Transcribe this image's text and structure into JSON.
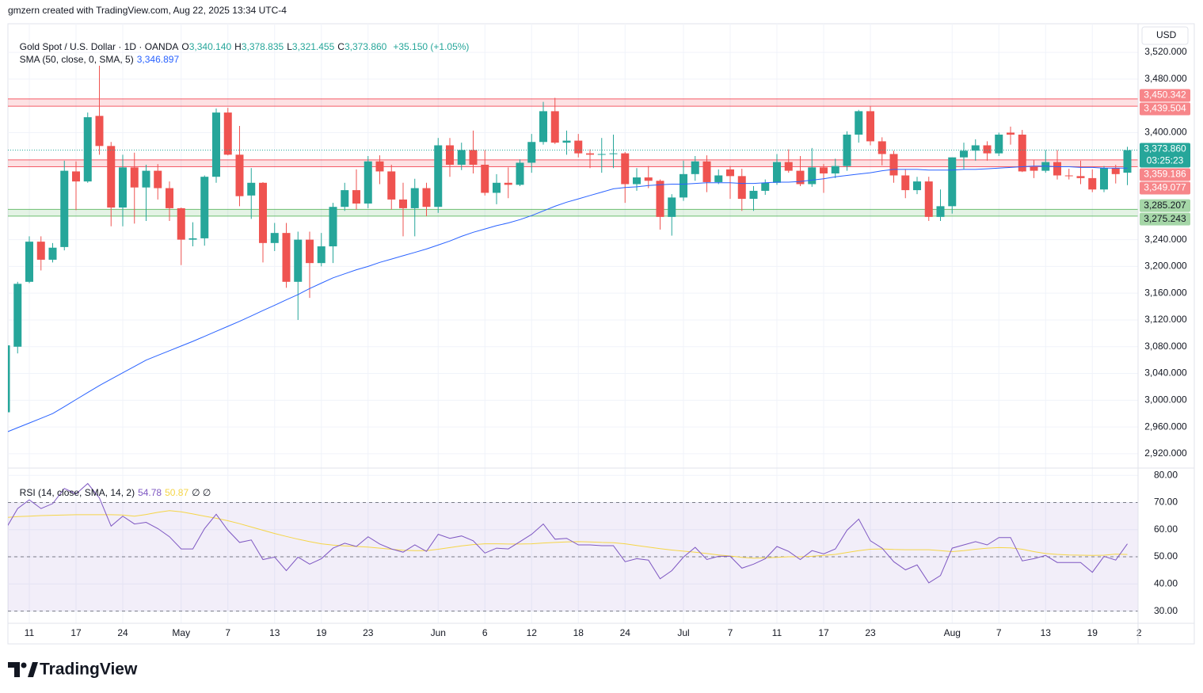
{
  "header": {
    "attribution": "gmzern created with TradingView.com, Aug 22, 2025 13:34 UTC-4"
  },
  "chart_data": {
    "type": "candlestick",
    "title": "Gold Spot / U.S. Dollar · 1D · OANDA",
    "ohlc_legend": [
      {
        "label": "O",
        "value": "3,340.140"
      },
      {
        "label": "H",
        "value": "3,378.835"
      },
      {
        "label": "L",
        "value": "3,321.455"
      },
      {
        "label": "C",
        "value": "3,373.860"
      }
    ],
    "change": "+35.150 (+1.05%)",
    "currency": "USD",
    "up_color": "#26a69a",
    "down_color": "#ef5350",
    "grid": true,
    "categories": [
      null,
      null,
      "11",
      null,
      null,
      null,
      "17",
      null,
      null,
      null,
      "24",
      null,
      null,
      null,
      null,
      "May",
      null,
      null,
      null,
      "7",
      null,
      null,
      null,
      "13",
      null,
      null,
      null,
      "19",
      null,
      null,
      null,
      "23",
      null,
      null,
      null,
      null,
      null,
      "Jun",
      null,
      null,
      null,
      "6",
      null,
      null,
      null,
      "12",
      null,
      null,
      null,
      "18",
      null,
      null,
      null,
      "24",
      null,
      null,
      null,
      null,
      "Jul",
      null,
      null,
      null,
      "7",
      null,
      null,
      null,
      "11",
      null,
      null,
      null,
      "17",
      null,
      null,
      null,
      "23",
      null,
      null,
      null,
      null,
      null,
      null,
      "Aug",
      null,
      null,
      null,
      "7",
      null,
      null,
      null,
      "13",
      null,
      null,
      null,
      "19",
      null,
      null,
      null,
      "2"
    ],
    "open": [
      2982,
      3080,
      3177,
      3237,
      3210,
      3229,
      3342,
      3327,
      3425,
      3380,
      3288,
      3348,
      3318,
      3343,
      3317,
      3287,
      3240,
      3242,
      3334,
      3430,
      3367,
      3306,
      3325,
      3235,
      3250,
      3177,
      3240,
      3205,
      3230,
      3289,
      3314,
      3294,
      3357,
      3342,
      3300,
      3287,
      3317,
      3289,
      3381,
      3352,
      3374,
      3352,
      3310,
      3325,
      3322,
      3355,
      3386,
      3432,
      3385,
      3388,
      3369,
      3367,
      3368,
      3369,
      3323,
      3333,
      3328,
      3274,
      3303,
      3338,
      3357,
      3326,
      3345,
      3335,
      3301,
      3313,
      3325,
      3356,
      3343,
      3323,
      3348,
      3339,
      3350,
      3397,
      3432,
      3387,
      3368,
      3336,
      3314,
      3327,
      3274,
      3290,
      3363,
      3373,
      3381,
      3369,
      3400,
      3397,
      3349,
      3343,
      3356,
      3336,
      3335,
      3332,
      3315,
      3347,
      3340.14,
      null
    ],
    "high": [
      3090,
      3177,
      3245,
      3245,
      3235,
      3358,
      3357,
      3430,
      3500,
      3386,
      3367,
      3370,
      3352,
      3353,
      3327,
      3288,
      3266,
      3336,
      3436,
      3437,
      3410,
      3347,
      3326,
      3265,
      3265,
      3252,
      3252,
      3250,
      3295,
      3325,
      3345,
      3365,
      3366,
      3352,
      3325,
      3331,
      3325,
      3392,
      3392,
      3385,
      3403,
      3374,
      3338,
      3348,
      3360,
      3398,
      3446,
      3452,
      3403,
      3398,
      3375,
      3392,
      3397,
      3371,
      3347,
      3350,
      3330,
      3308,
      3358,
      3365,
      3366,
      3345,
      3350,
      3346,
      3320,
      3330,
      3368,
      3375,
      3365,
      3377,
      3353,
      3361,
      3402,
      3434,
      3439,
      3393,
      3373,
      3345,
      3334,
      3334,
      3315,
      3363,
      3385,
      3390,
      3387,
      3400,
      3409,
      3404,
      3359,
      3374,
      3374,
      3346,
      3358,
      3345,
      3350,
      3352,
      3378.835,
      null
    ],
    "low": [
      2975,
      3070,
      3175,
      3194,
      3206,
      3224,
      3284,
      3325,
      3367,
      3260,
      3260,
      3264,
      3268,
      3300,
      3268,
      3202,
      3230,
      3231,
      3325,
      3366,
      3290,
      3271,
      3206,
      3223,
      3168,
      3120,
      3153,
      3200,
      3205,
      3283,
      3285,
      3287,
      3323,
      3285,
      3245,
      3245,
      3275,
      3280,
      3334,
      3344,
      3339,
      3306,
      3293,
      3302,
      3320,
      3340,
      3382,
      3383,
      3367,
      3363,
      3347,
      3340,
      3347,
      3295,
      3313,
      3317,
      3255,
      3246,
      3298,
      3328,
      3311,
      3323,
      3301,
      3283,
      3283,
      3307,
      3322,
      3340,
      3320,
      3319,
      3310,
      3332,
      3343,
      3385,
      3381,
      3351,
      3325,
      3302,
      3308,
      3268,
      3268,
      3279,
      3345,
      3358,
      3358,
      3365,
      3382,
      3341,
      3332,
      3340,
      3330,
      3330,
      3323,
      3311,
      3311,
      3324,
      3321.455,
      null
    ],
    "close": [
      3082,
      3174,
      3237,
      3210,
      3228,
      3343,
      3327,
      3423,
      3380,
      3288,
      3348,
      3318,
      3343,
      3317,
      3287,
      3240,
      3242,
      3334,
      3430,
      3367,
      3305,
      3325,
      3235,
      3250,
      3177,
      3240,
      3205,
      3230,
      3289,
      3314,
      3294,
      3357,
      3342,
      3300,
      3287,
      3317,
      3289,
      3381,
      3352,
      3374,
      3352,
      3310,
      3325,
      3322,
      3355,
      3386,
      3432,
      3385,
      3388,
      3369,
      3367,
      3368,
      3369,
      3323,
      3333,
      3328,
      3274,
      3303,
      3338,
      3357,
      3326,
      3336,
      3335,
      3301,
      3313,
      3325,
      3356,
      3343,
      3323,
      3348,
      3339,
      3350,
      3397,
      3432,
      3387,
      3368,
      3336,
      3314,
      3327,
      3274,
      3290,
      3363,
      3373,
      3381,
      3369,
      3397,
      3397,
      3342,
      3343,
      3356,
      3336,
      3335,
      3332,
      3315,
      3347,
      3338,
      3373.86,
      null
    ],
    "ylim": [
      2898.6,
      3562.7
    ],
    "yticks": [
      {
        "value": 3520,
        "label": "3,520.000"
      },
      {
        "value": 3480,
        "label": "3,480.000"
      },
      {
        "value": 3400,
        "label": "3,400.000"
      },
      {
        "value": 3240,
        "label": "3,240.000"
      },
      {
        "value": 3200,
        "label": "3,200.000"
      },
      {
        "value": 3160,
        "label": "3,160.000"
      },
      {
        "value": 3120,
        "label": "3,120.000"
      },
      {
        "value": 3080,
        "label": "3,080.000"
      },
      {
        "value": 3040,
        "label": "3,040.000"
      },
      {
        "value": 3000,
        "label": "3,000.000"
      },
      {
        "value": 2960,
        "label": "2,960.000"
      },
      {
        "value": 2920,
        "label": "2,920.000"
      }
    ],
    "sma": {
      "name": "SMA (50, close, 0, SMA, 5)",
      "value_label": "3,346.897",
      "color": "#2962ff",
      "values": [
        2952,
        2959,
        2966,
        2973,
        2980,
        2990.5,
        3001,
        3011.5,
        3022,
        3031.5,
        3041,
        3050.5,
        3060,
        3067,
        3074,
        3081,
        3088,
        3095.5,
        3103,
        3110.5,
        3118,
        3126,
        3134,
        3142,
        3150,
        3158,
        3167,
        3175,
        3183,
        3189,
        3195,
        3200,
        3206,
        3211,
        3216,
        3221,
        3226,
        3232,
        3238,
        3245,
        3251,
        3256,
        3261,
        3265,
        3270,
        3276,
        3283,
        3290,
        3296,
        3301,
        3306,
        3311,
        3316,
        3318,
        3319,
        3321,
        3322,
        3323,
        3323,
        3324,
        3325,
        3325,
        3325,
        3324,
        3324,
        3325,
        3326,
        3326,
        3327,
        3329,
        3331,
        3334,
        3336,
        3338,
        3340,
        3343,
        3345,
        3345,
        3345,
        3344,
        3344,
        3344,
        3345,
        3345,
        3346,
        3347,
        3348,
        3349,
        3350,
        3350,
        3349,
        3349,
        3348,
        3348,
        3347,
        3347,
        3346.897,
        null
      ]
    },
    "levels": [
      {
        "high": {
          "value": 3450.342,
          "label": "3,450.342"
        },
        "low": {
          "value": 3439.504,
          "label": "3,439.504"
        },
        "color": "#f23645",
        "tag_color": "#f7868a",
        "tag_text": "#ffffff"
      },
      {
        "high": {
          "value": 3359.186,
          "label": "3,359.186"
        },
        "low": {
          "value": 3349.077,
          "label": "3,349.077"
        },
        "color": "#f23645",
        "tag_color": "#f7868a",
        "tag_text": "#ffffff"
      },
      {
        "high": {
          "value": 3285.207,
          "label": "3,285.207"
        },
        "low": {
          "value": 3275.243,
          "label": "3,275.243"
        },
        "color": "#4caf50",
        "tag_color": "#a5d6a7",
        "tag_text": "#131722"
      }
    ],
    "last_price": {
      "value": 3373.86,
      "label": "3,373.860",
      "countdown": "03:25:23",
      "color": "#26a69a"
    },
    "rsi": {
      "name": "RSI (14, close, SMA, 14, 2)",
      "value_label": "54.78",
      "signal_label": "50.87",
      "status": "∅ ∅",
      "color": "#7e57c2",
      "signal_color": "#f5d547",
      "values": [
        60.4,
        67.8,
        71.0,
        67.8,
        69.6,
        75.2,
        73.2,
        77.0,
        71.7,
        61.3,
        65.0,
        62.1,
        62.7,
        60.4,
        57.4,
        52.9,
        52.9,
        60.4,
        65.7,
        59.8,
        55.3,
        56.2,
        49.0,
        49.9,
        44.9,
        49.9,
        47.3,
        49.3,
        53.2,
        55.0,
        53.8,
        57.4,
        54.7,
        52.9,
        51.7,
        54.4,
        52.0,
        58.3,
        56.8,
        57.7,
        55.9,
        51.4,
        53.2,
        52.9,
        55.6,
        58.3,
        62.1,
        56.5,
        56.8,
        54.4,
        54.4,
        54.1,
        54.1,
        48.2,
        49.3,
        48.8,
        41.9,
        44.9,
        49.9,
        53.5,
        49.0,
        50.2,
        50.2,
        45.8,
        47.3,
        49.3,
        53.8,
        52.0,
        49.0,
        52.3,
        51.1,
        52.9,
        59.8,
        63.9,
        55.9,
        53.2,
        48.2,
        45.2,
        47.0,
        40.4,
        43.1,
        53.2,
        54.4,
        55.6,
        54.4,
        57.1,
        57.1,
        48.5,
        49.3,
        50.5,
        47.9,
        47.9,
        47.9,
        44.3,
        50.2,
        48.8,
        54.78,
        null
      ],
      "signal": [
        64.5,
        64.8,
        65,
        65.2,
        65.3,
        65.4,
        65.5,
        65.5,
        65.5,
        65.5,
        65.4,
        65.0,
        65.6,
        66.4,
        67.0,
        66.6,
        65.8,
        65.0,
        64.2,
        63.3,
        62.2,
        61.0,
        59.8,
        58.6,
        57.5,
        56.5,
        55.6,
        54.8,
        54.3,
        54.0,
        53.8,
        53.6,
        53.2,
        52.8,
        52.4,
        52.3,
        52.3,
        52.8,
        53.4,
        54.0,
        54.5,
        54.8,
        54.8,
        54.7,
        54.7,
        54.8,
        55.1,
        55.3,
        55.5,
        55.6,
        55.5,
        55.3,
        55.2,
        54.8,
        54.2,
        53.6,
        53.0,
        52.5,
        52.1,
        51.7,
        51.2,
        50.7,
        50.3,
        49.8,
        49.5,
        49.6,
        49.8,
        50.0,
        50.0,
        50.2,
        50.5,
        50.9,
        51.6,
        52.3,
        52.8,
        52.9,
        52.7,
        52.6,
        52.6,
        52.6,
        52.3,
        51.9,
        52.3,
        52.8,
        53.2,
        53.4,
        53.3,
        52.8,
        51.9,
        51.2,
        50.9,
        50.7,
        50.6,
        50.5,
        50.6,
        51.0,
        50.87,
        null
      ],
      "ylim": [
        25.5,
        82.7
      ],
      "yticks": [
        {
          "value": 80,
          "label": "80.00"
        },
        {
          "value": 70,
          "label": "70.00"
        },
        {
          "value": 60,
          "label": "60.00"
        },
        {
          "value": 50,
          "label": "50.00"
        },
        {
          "value": 40,
          "label": "40.00"
        },
        {
          "value": 30,
          "label": "30.00"
        }
      ],
      "bands": [
        30,
        70
      ],
      "mid": 50
    }
  },
  "footer": {
    "logo": "TradingView"
  }
}
